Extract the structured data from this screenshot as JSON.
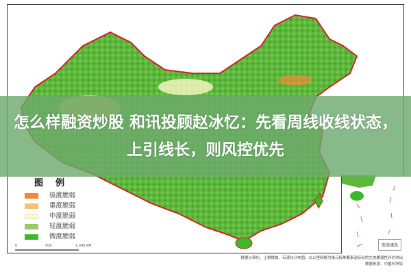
{
  "banner": {
    "title": "怎么样融资炒股 和讯投顾赵冰忆：先看周线收线状态，上引线长，则风控优先"
  },
  "legend": {
    "title": "图例",
    "items": [
      {
        "label": "极度脆弱",
        "color": "#f08a35"
      },
      {
        "label": "重度脆弱",
        "color": "#f8c070"
      },
      {
        "label": "中度脆弱",
        "color": "#fdf8c8"
      },
      {
        "label": "轻度脆弱",
        "color": "#9cc86a"
      },
      {
        "label": "微度脆弱",
        "color": "#3cb82a"
      }
    ]
  },
  "scale": {
    "ticks": [
      "0",
      "500",
      "1,000 KM"
    ]
  },
  "inset": {
    "label": "南海诸岛"
  },
  "footnote": {
    "line1": "根据沙漠化、土壤侵蚀、石漠化分布图，以公里网格为单元按单要素及综合的生态脆弱性评价得出",
    "line2": "数据来源：中国科学院"
  },
  "colors": {
    "border": "#d02020",
    "banner": "#6eaa6e"
  }
}
